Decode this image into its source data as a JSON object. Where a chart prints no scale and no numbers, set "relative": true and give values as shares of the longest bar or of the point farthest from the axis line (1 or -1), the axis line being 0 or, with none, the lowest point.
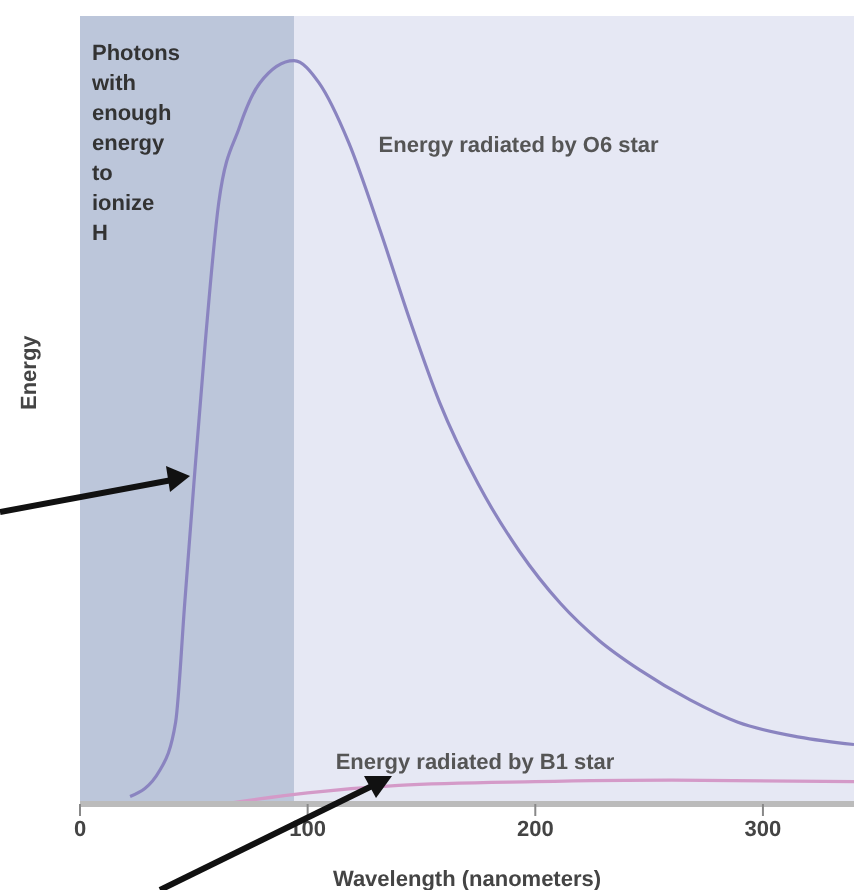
{
  "chart_data": {
    "type": "line",
    "relative": true,
    "xlabel": "Wavelength (nanometers)",
    "ylabel": "Energy",
    "xlim": [
      0,
      340
    ],
    "xticks": [
      0,
      100,
      200,
      300
    ],
    "legend": false,
    "grid": false,
    "marker": "none",
    "line_style": "solid",
    "bands": [
      {
        "axis": "x",
        "from": 0,
        "to": 94,
        "label": "Photons with enough energy to ionize H",
        "color": "#bcc6da"
      }
    ],
    "series": [
      {
        "name": "Energy radiated by O6 star",
        "color": "#8a84c0",
        "x": [
          22,
          35,
          42,
          46,
          50,
          55,
          61,
          70,
          79,
          94,
          105,
          118,
          132,
          145,
          158,
          175,
          193,
          211,
          228,
          246,
          268,
          289,
          316,
          340
        ],
        "values": [
          0.01,
          0.045,
          0.11,
          0.27,
          0.43,
          0.62,
          0.81,
          0.91,
          0.97,
          1,
          0.97,
          0.89,
          0.77,
          0.65,
          0.54,
          0.43,
          0.34,
          0.27,
          0.22,
          0.18,
          0.14,
          0.11,
          0.09,
          0.08
        ]
      },
      {
        "name": "Energy radiated by B1 star",
        "color": "#d49ac8",
        "x": [
          63,
          100,
          140,
          200,
          260,
          340
        ],
        "values": [
          0,
          0.015,
          0.025,
          0.03,
          0.032,
          0.03
        ]
      }
    ]
  }
}
